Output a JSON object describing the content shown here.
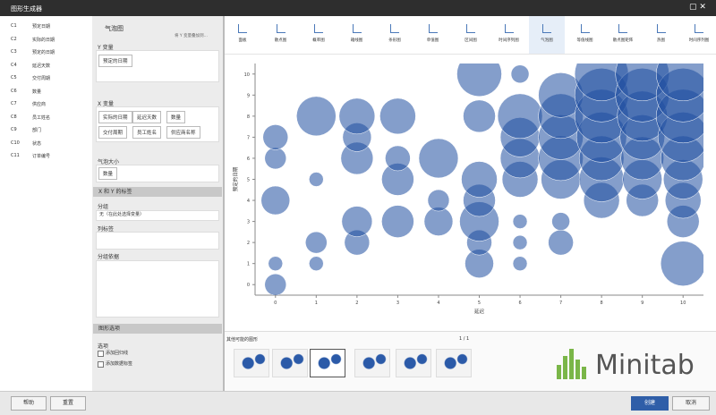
{
  "title": "图形生成器",
  "variables": [
    {
      "id": "C1",
      "name": "预定日期"
    },
    {
      "id": "C2",
      "name": "实际的日期"
    },
    {
      "id": "C3",
      "name": "预定的日期"
    },
    {
      "id": "C4",
      "name": "延迟天数"
    },
    {
      "id": "C5",
      "name": "交付周期"
    },
    {
      "id": "C6",
      "name": "数量"
    },
    {
      "id": "C7",
      "name": "供应商"
    },
    {
      "id": "C8",
      "name": "员工姓名"
    },
    {
      "id": "C9",
      "name": "部门"
    },
    {
      "id": "C10",
      "name": "状态"
    },
    {
      "id": "C11",
      "name": "订单编号"
    }
  ],
  "panel": {
    "title": "气泡图",
    "link": "将 Y 变量叠加到...",
    "y_label": "Y 变量",
    "y_chips": [
      "预定的日期"
    ],
    "x_label": "X 变量",
    "x_chips": [
      "实际的日期",
      "延迟天数",
      "数量",
      "交付周期",
      "员工姓名",
      "供应商名称"
    ],
    "size_label": "气泡大小",
    "size_chips": [
      "数量"
    ],
    "section1": "X 和 Y 的标签",
    "group_label": "分组",
    "group_value": "无（在此处选择变量）",
    "labels_label": "列标签",
    "order_label": "分组依据",
    "section2": "图形选项",
    "opt_label": "选项",
    "checks": [
      "添加回归线",
      "添加数据标签"
    ]
  },
  "toolbar": [
    "面板",
    "散点图",
    "概率图",
    "箱线图",
    "条形图",
    "单值图",
    "区间图",
    "时间序列图",
    "气泡图",
    "等值线图",
    "散点图矩阵",
    "热图",
    "时间序列图"
  ],
  "chart": {
    "type": "bubble",
    "xlabel": "延迟",
    "ylabel": "预定的日期",
    "color": "#1f4fa0",
    "xlim": [
      -0.5,
      10.5
    ],
    "ylim": [
      -0.5,
      10.5
    ],
    "xticks": [
      0,
      1,
      2,
      3,
      4,
      5,
      6,
      7,
      8,
      9,
      10
    ],
    "yticks": [
      0,
      1,
      2,
      3,
      4,
      5,
      6,
      7,
      8,
      9,
      10
    ],
    "x": [
      0,
      0,
      0,
      0,
      0,
      1,
      1,
      1,
      1,
      2,
      2,
      2,
      2,
      2,
      3,
      3,
      3,
      3,
      4,
      4,
      4,
      5,
      5,
      5,
      5,
      5,
      5,
      5,
      6,
      6,
      6,
      6,
      6,
      6,
      6,
      6,
      7,
      7,
      7,
      7,
      7,
      7,
      7,
      8,
      8,
      8,
      8,
      8,
      8,
      8,
      9,
      9,
      9,
      9,
      9,
      9,
      9,
      10,
      10,
      10,
      10,
      10,
      10,
      10,
      10,
      10
    ],
    "values": [
      1,
      0,
      4,
      6,
      7,
      1,
      2,
      5,
      8,
      2,
      3,
      6,
      7,
      8,
      3,
      5,
      6,
      8,
      3,
      4,
      6,
      1,
      2,
      3,
      4,
      5,
      8,
      10,
      1,
      2,
      3,
      5,
      6,
      7,
      8,
      10,
      2,
      3,
      5,
      6,
      7,
      8,
      9,
      4,
      5,
      6,
      7,
      8,
      9,
      10,
      4,
      5,
      6,
      7,
      8,
      9,
      10,
      1,
      3,
      4,
      5,
      6,
      7,
      8,
      9,
      10
    ],
    "sizes": [
      8,
      12,
      16,
      12,
      14,
      8,
      12,
      8,
      22,
      14,
      17,
      18,
      16,
      20,
      18,
      18,
      14,
      20,
      16,
      12,
      22,
      16,
      14,
      22,
      18,
      20,
      18,
      25,
      8,
      8,
      8,
      20,
      22,
      22,
      25,
      10,
      14,
      10,
      22,
      25,
      25,
      25,
      25,
      20,
      25,
      25,
      28,
      30,
      30,
      30,
      18,
      22,
      24,
      25,
      28,
      30,
      30,
      25,
      18,
      20,
      22,
      25,
      28,
      30,
      30,
      30
    ]
  },
  "thumbs_label": "其他可能的图形",
  "pager": "1 / 1",
  "brand": "Minitab",
  "buttons": {
    "help": "帮助",
    "reset": "重置",
    "create": "创建",
    "cancel": "取消"
  }
}
